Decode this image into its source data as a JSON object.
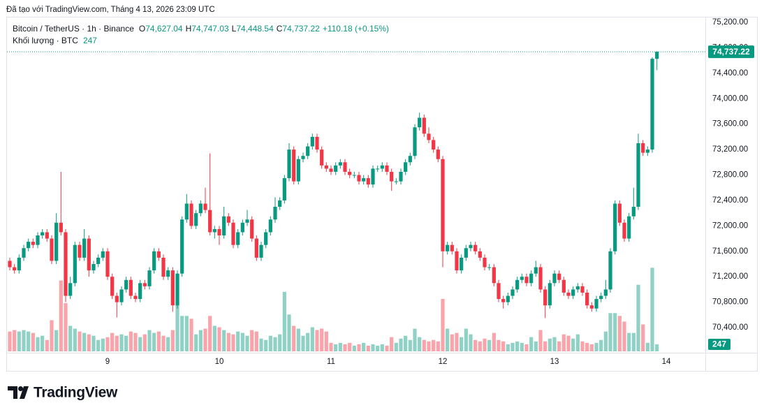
{
  "created": "Đã tạo với TradingView.com, Tháng 4 13, 2026 23:09 UTC",
  "brand": "TradingView",
  "chart_data": {
    "type": "candlestick",
    "legend": {
      "symbol": "Bitcoin / TetherUS · 1h · Binance",
      "ohlc": [
        {
          "key": "O",
          "value": "74,627.04"
        },
        {
          "key": "H",
          "value": "74,747.03"
        },
        {
          "key": "L",
          "value": "74,448.54"
        },
        {
          "key": "C",
          "value": "74,737.22"
        }
      ],
      "change": "+110.18 (+0.15%)",
      "volume_title": "Khối lượng · BTC",
      "volume_value": "247"
    },
    "last_price_label": "74,737.22",
    "volume_label": "247",
    "up_color": "#089981",
    "down_color": "#f23645",
    "grid": true,
    "xlim": [
      -0.6,
      149.4
    ],
    "xticks": [
      {
        "value": 21,
        "label": "9"
      },
      {
        "value": 45,
        "label": "10"
      },
      {
        "value": 69,
        "label": "11"
      },
      {
        "value": 93,
        "label": "12"
      },
      {
        "value": 117,
        "label": "13"
      },
      {
        "value": 141,
        "label": "14"
      }
    ],
    "ylim": [
      70005,
      75442
    ],
    "yticks": [
      {
        "value": 70400,
        "label": "70,400.00"
      },
      {
        "value": 70800,
        "label": "70,800.00"
      },
      {
        "value": 71200,
        "label": "71,200.00"
      },
      {
        "value": 71600,
        "label": "71,600.00"
      },
      {
        "value": 72000,
        "label": "72,000.00"
      },
      {
        "value": 72400,
        "label": "72,400.00"
      },
      {
        "value": 72800,
        "label": "72,800.00"
      },
      {
        "value": 73200,
        "label": "73,200.00"
      },
      {
        "value": 73600,
        "label": "73,600.00"
      },
      {
        "value": 74000,
        "label": "74,000.00"
      },
      {
        "value": 74400,
        "label": "74,400.00"
      },
      {
        "value": 74800,
        "label": "74,800.00"
      },
      {
        "value": 75200,
        "label": "75,200.00"
      }
    ],
    "y2lim": [
      0,
      12200
    ],
    "x": [
      0,
      1,
      2,
      3,
      4,
      5,
      6,
      7,
      8,
      9,
      10,
      11,
      12,
      13,
      14,
      15,
      16,
      17,
      18,
      19,
      20,
      21,
      22,
      23,
      24,
      25,
      26,
      27,
      28,
      29,
      30,
      31,
      32,
      33,
      34,
      35,
      36,
      37,
      38,
      39,
      40,
      41,
      42,
      43,
      44,
      45,
      46,
      47,
      48,
      49,
      50,
      51,
      52,
      53,
      54,
      55,
      56,
      57,
      58,
      59,
      60,
      61,
      62,
      63,
      64,
      65,
      66,
      67,
      68,
      69,
      70,
      71,
      72,
      73,
      74,
      75,
      76,
      77,
      78,
      79,
      80,
      81,
      82,
      83,
      84,
      85,
      86,
      87,
      88,
      89,
      90,
      91,
      92,
      93,
      94,
      95,
      96,
      97,
      98,
      99,
      100,
      101,
      102,
      103,
      104,
      105,
      106,
      107,
      108,
      109,
      110,
      111,
      112,
      113,
      114,
      115,
      116,
      117,
      118,
      119,
      120,
      121,
      122,
      123,
      124,
      125,
      126,
      127,
      128,
      129,
      130,
      131,
      132,
      133,
      134,
      135,
      136,
      137,
      138,
      139
    ],
    "candles": {
      "open": [
        71450,
        71350,
        71300,
        71500,
        71650,
        71750,
        71700,
        71850,
        71900,
        71800,
        71450,
        72050,
        71900,
        70900,
        71100,
        71700,
        71500,
        71800,
        71300,
        71400,
        71500,
        71600,
        71200,
        70900,
        70800,
        71000,
        71150,
        70900,
        70850,
        71100,
        71050,
        71300,
        71600,
        71500,
        71200,
        71300,
        70750,
        71250,
        72100,
        72350,
        72000,
        72200,
        72350,
        72250,
        71900,
        71950,
        71850,
        72150,
        72050,
        71700,
        71900,
        72050,
        72100,
        71800,
        71500,
        71700,
        71900,
        72100,
        72300,
        72400,
        72750,
        73200,
        72700,
        73050,
        73100,
        73250,
        73400,
        73200,
        72950,
        72900,
        72850,
        72950,
        73000,
        72850,
        72800,
        72800,
        72700,
        72750,
        72650,
        72900,
        72900,
        72950,
        72850,
        72700,
        72700,
        72850,
        73000,
        73100,
        73550,
        73700,
        73450,
        73350,
        73200,
        73050,
        71600,
        71700,
        71600,
        71300,
        71500,
        71650,
        71700,
        71600,
        71500,
        71350,
        71350,
        71100,
        70850,
        70800,
        70900,
        71000,
        71150,
        71200,
        71100,
        71250,
        71350,
        71000,
        70750,
        71100,
        71250,
        71150,
        70950,
        70900,
        71000,
        71050,
        70950,
        70750,
        70700,
        70850,
        70900,
        71000,
        71600,
        72350,
        72050,
        71800,
        72150,
        72300,
        73300,
        73150,
        73200,
        74627.04
      ],
      "high": [
        71500,
        71400,
        71550,
        71700,
        71800,
        71800,
        71900,
        71950,
        71950,
        71850,
        72200,
        72850,
        71950,
        71200,
        71750,
        71750,
        71950,
        71850,
        71450,
        71550,
        71650,
        71650,
        71250,
        70950,
        71050,
        71200,
        71200,
        70950,
        71150,
        71150,
        71350,
        71650,
        71650,
        71550,
        71350,
        71350,
        71300,
        72150,
        72500,
        72400,
        72250,
        72400,
        72600,
        73140,
        72000,
        72000,
        72300,
        72200,
        72100,
        71950,
        72100,
        72250,
        72150,
        71850,
        71750,
        71950,
        72150,
        72450,
        72450,
        72800,
        73300,
        73250,
        73100,
        73150,
        73300,
        73450,
        73450,
        73250,
        73000,
        72950,
        73000,
        73050,
        73050,
        72900,
        72850,
        72850,
        72800,
        72800,
        72950,
        72950,
        73000,
        73000,
        72900,
        72750,
        72900,
        73050,
        73150,
        73600,
        73780,
        73750,
        73550,
        73400,
        73250,
        73100,
        71750,
        71750,
        71650,
        71550,
        71700,
        71750,
        71750,
        71650,
        71550,
        71400,
        71400,
        71150,
        70900,
        70950,
        71050,
        71200,
        71250,
        71250,
        71300,
        71450,
        71400,
        71050,
        71150,
        71300,
        71300,
        71200,
        71000,
        71050,
        71100,
        71100,
        71000,
        70800,
        70900,
        70950,
        71150,
        71650,
        72400,
        72400,
        72100,
        72200,
        72600,
        73450,
        73350,
        73250,
        74650,
        74747.03
      ],
      "low": [
        71300,
        71250,
        71250,
        71450,
        71600,
        71650,
        71650,
        71800,
        71750,
        71400,
        71400,
        71850,
        70800,
        70850,
        71050,
        71450,
        71450,
        71200,
        71250,
        71350,
        71450,
        71150,
        70850,
        70560,
        70750,
        70950,
        70850,
        70800,
        70800,
        71000,
        71000,
        71250,
        71450,
        71150,
        71150,
        70650,
        70700,
        71200,
        72050,
        71950,
        71950,
        72150,
        72200,
        71850,
        71800,
        71700,
        71800,
        72000,
        71650,
        71650,
        71850,
        72000,
        71750,
        71450,
        71450,
        71650,
        71850,
        72050,
        72250,
        72350,
        72700,
        72650,
        72650,
        73000,
        73050,
        73200,
        73150,
        72900,
        72850,
        72800,
        72800,
        72900,
        72800,
        72750,
        72750,
        72650,
        72650,
        72600,
        72600,
        72850,
        72850,
        72800,
        72550,
        72650,
        72650,
        72800,
        72950,
        73050,
        73500,
        73400,
        73300,
        73150,
        73000,
        71350,
        71550,
        71550,
        71250,
        71250,
        71450,
        71600,
        71550,
        71450,
        71300,
        71300,
        71050,
        70800,
        70700,
        70750,
        70850,
        70950,
        71100,
        71050,
        71050,
        71200,
        70950,
        70550,
        70700,
        71050,
        71100,
        70900,
        70850,
        70850,
        70950,
        70900,
        70700,
        70650,
        70650,
        70800,
        70850,
        70950,
        71550,
        72000,
        71750,
        71750,
        72100,
        72250,
        73100,
        73100,
        73150,
        74448.54
      ],
      "close": [
        71350,
        71300,
        71500,
        71650,
        71750,
        71700,
        71850,
        71900,
        71800,
        71450,
        72050,
        71900,
        70900,
        71100,
        71700,
        71500,
        71800,
        71300,
        71400,
        71500,
        71600,
        71200,
        70900,
        70800,
        71000,
        71150,
        70900,
        70850,
        71100,
        71050,
        71300,
        71600,
        71500,
        71200,
        71300,
        70750,
        71250,
        72100,
        72350,
        72000,
        72200,
        72350,
        72250,
        71900,
        71950,
        71850,
        72150,
        72050,
        71700,
        71900,
        72050,
        72100,
        71800,
        71500,
        71700,
        71900,
        72100,
        72300,
        72400,
        72750,
        73200,
        72700,
        73050,
        73100,
        73250,
        73400,
        73200,
        72950,
        72900,
        72850,
        72950,
        73000,
        72850,
        72800,
        72800,
        72700,
        72750,
        72650,
        72900,
        72900,
        72950,
        72850,
        72700,
        72700,
        72850,
        73000,
        73100,
        73550,
        73700,
        73450,
        73350,
        73200,
        73050,
        71600,
        71700,
        71600,
        71300,
        71500,
        71650,
        71700,
        71600,
        71500,
        71350,
        71350,
        71100,
        70850,
        70800,
        70900,
        71000,
        71150,
        71200,
        71100,
        71250,
        71350,
        71000,
        70750,
        71100,
        71250,
        71150,
        70950,
        70900,
        71000,
        71050,
        70950,
        70750,
        70700,
        70850,
        70900,
        71000,
        71600,
        72350,
        72050,
        71800,
        72150,
        72300,
        73300,
        73150,
        73200,
        74627.04,
        74737.22
      ]
    },
    "volume": {
      "axis": "y2",
      "values": [
        700,
        750,
        700,
        750,
        700,
        650,
        500,
        550,
        400,
        1100,
        750,
        2500,
        1700,
        900,
        800,
        700,
        650,
        600,
        550,
        400,
        450,
        500,
        650,
        550,
        600,
        550,
        700,
        650,
        500,
        600,
        750,
        650,
        700,
        550,
        500,
        750,
        1800,
        1250,
        1250,
        1150,
        600,
        750,
        800,
        1250,
        900,
        850,
        750,
        650,
        600,
        700,
        650,
        550,
        750,
        700,
        450,
        400,
        550,
        500,
        600,
        2100,
        1300,
        900,
        800,
        550,
        650,
        850,
        750,
        800,
        700,
        300,
        250,
        300,
        250,
        300,
        200,
        250,
        300,
        200,
        250,
        200,
        250,
        200,
        500,
        300,
        450,
        550,
        400,
        800,
        500,
        400,
        350,
        400,
        350,
        1850,
        800,
        600,
        650,
        500,
        800,
        600,
        400,
        350,
        450,
        400,
        650,
        400,
        350,
        250,
        300,
        350,
        300,
        250,
        500,
        350,
        750,
        350,
        450,
        500,
        350,
        600,
        550,
        450,
        600,
        350,
        300,
        250,
        300,
        400,
        700,
        1350,
        1350,
        1250,
        1050,
        650,
        650,
        2350,
        950,
        300,
        2950,
        247
      ]
    }
  }
}
